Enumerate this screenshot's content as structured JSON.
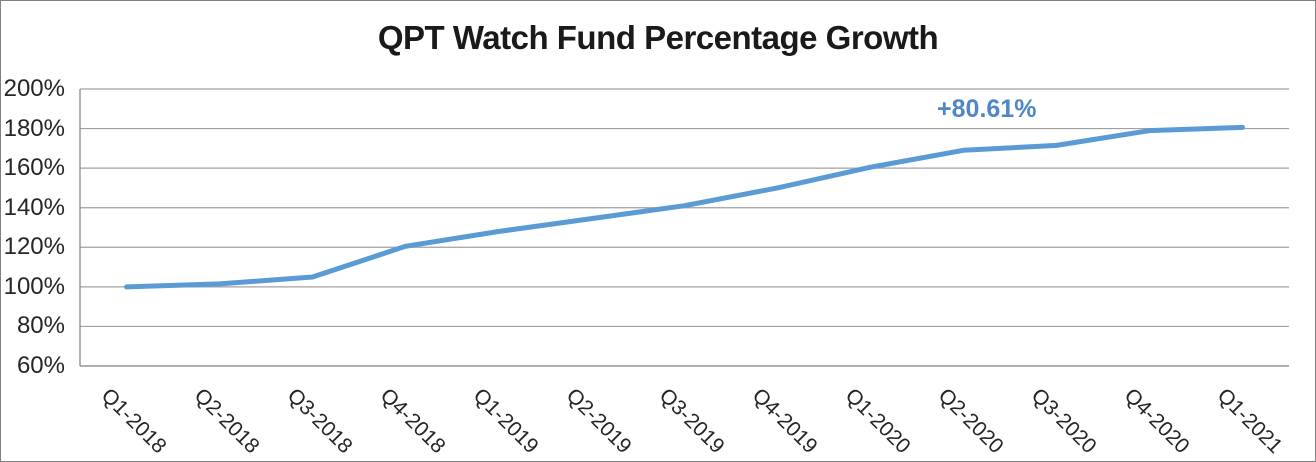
{
  "chart": {
    "title": "QPT Watch Fund Percentage Growth"
  },
  "chart_data": {
    "type": "line",
    "title": "QPT Watch Fund Percentage Growth",
    "categories": [
      "Q1-2018",
      "Q2-2018",
      "Q3-2018",
      "Q4-2018",
      "Q1-2019",
      "Q2-2019",
      "Q3-2019",
      "Q4-2019",
      "Q1-2020",
      "Q2-2020",
      "Q3-2020",
      "Q4-2020",
      "Q1-2021"
    ],
    "values": [
      100,
      101.5,
      105,
      120.5,
      128,
      134.5,
      141,
      150,
      160.5,
      169,
      171.5,
      179,
      180.61
    ],
    "annotation": {
      "text": "+80.61%",
      "color": "#4e87c7"
    },
    "xlabel": "",
    "ylabel": "",
    "ylim": [
      60,
      200
    ],
    "ytick_step": 20,
    "ytick_suffix": "%",
    "grid": true,
    "legend": "none",
    "line_color": "#5b9bd5",
    "gridline_color": "#a0a0a0",
    "axis_color": "#808080"
  }
}
